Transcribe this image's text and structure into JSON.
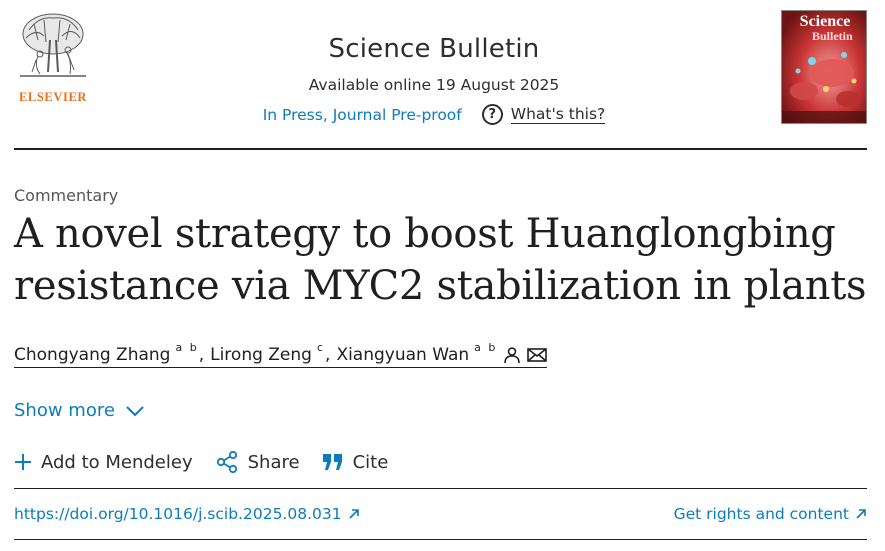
{
  "publisher": {
    "name": "ELSEVIER",
    "logo_icon": "elsevier-tree-logo"
  },
  "journal": {
    "title": "Science Bulletin",
    "available": "Available online 19 August 2025",
    "status_link": "In Press, Journal Pre-proof",
    "help_label": "What's this?",
    "cover_title": "Science",
    "cover_subtitle": "Bulletin"
  },
  "article": {
    "type": "Commentary",
    "title": "A novel strategy to boost Huanglongbing resistance via MYC2 stabilization in plants",
    "authors": [
      {
        "name": "Chongyang Zhang",
        "affil": "a b"
      },
      {
        "name": "Lirong Zeng",
        "affil": "c"
      },
      {
        "name": "Xiangyuan Wan",
        "affil": "a b"
      }
    ],
    "separator": ","
  },
  "controls": {
    "show_more": "Show more",
    "add_mendeley": "Add to Mendeley",
    "share": "Share",
    "cite": "Cite"
  },
  "links": {
    "doi": "https://doi.org/10.1016/j.scib.2025.08.031",
    "rights": "Get rights and content"
  },
  "colors": {
    "link": "#0c7dbb",
    "publisher": "#e9711c",
    "text": "#1f1f1f"
  }
}
